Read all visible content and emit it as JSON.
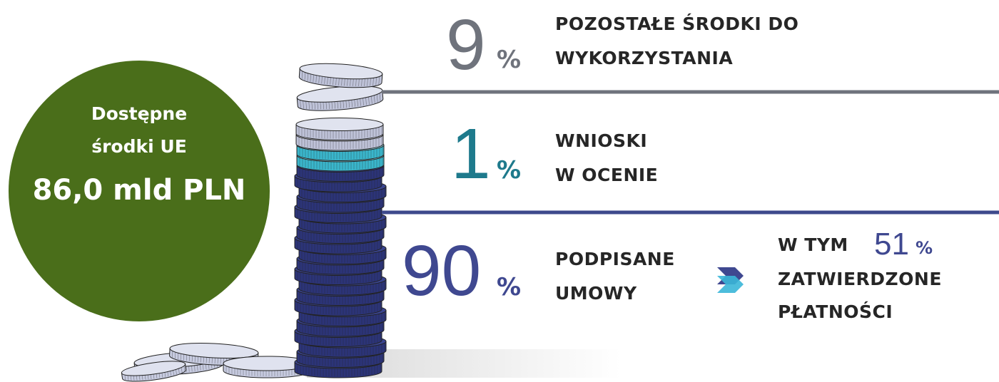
{
  "circle": {
    "line1": "Dostępne",
    "line2": "środki UE",
    "amount": "86,0 mld PLN"
  },
  "sections": [
    {
      "value": "9",
      "unit": "%",
      "lines": [
        "POZOSTAŁE ŚRODKI DO",
        "WYKORZYSTANIA"
      ]
    },
    {
      "value": "1",
      "unit": "%",
      "lines": [
        "WNIOSKI",
        "W OCENIE"
      ]
    },
    {
      "value": "90",
      "unit": "%",
      "lines": [
        "PODPISANE",
        "UMOWY"
      ]
    }
  ],
  "sub": {
    "prefix": "W TYM",
    "value": "51",
    "unit": "%",
    "lines": [
      "ZATWIERDZONE",
      "PŁATNOŚCI"
    ]
  }
}
